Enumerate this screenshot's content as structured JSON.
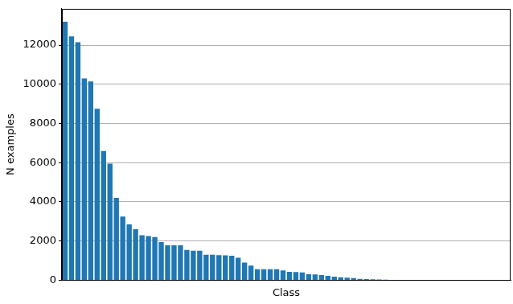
{
  "chart_data": {
    "type": "bar",
    "x_label": "Class",
    "y_label": "N examples",
    "categories": [
      null,
      null,
      null,
      null,
      null,
      null,
      null,
      null,
      null,
      null,
      null,
      null,
      null,
      null,
      null,
      null,
      null,
      null,
      null,
      null,
      null,
      null,
      null,
      null,
      null,
      null,
      null,
      null,
      null,
      null,
      null,
      null,
      null,
      null,
      null,
      null,
      null,
      null,
      null,
      null,
      null,
      null,
      null,
      null,
      null,
      null,
      null,
      null,
      null,
      null,
      null,
      null,
      null,
      null,
      null,
      null,
      null,
      null,
      null,
      null,
      null,
      null,
      null,
      null,
      null,
      null,
      null,
      null,
      null,
      null
    ],
    "values": [
      13200,
      12450,
      12150,
      10300,
      10150,
      8750,
      6600,
      5950,
      4200,
      3250,
      2850,
      2600,
      2300,
      2250,
      2200,
      1950,
      1780,
      1780,
      1780,
      1550,
      1500,
      1500,
      1300,
      1300,
      1280,
      1270,
      1250,
      1150,
      900,
      750,
      560,
      560,
      560,
      560,
      500,
      430,
      420,
      400,
      300,
      290,
      260,
      220,
      180,
      150,
      130,
      110,
      70,
      60,
      50,
      40,
      30,
      20,
      10,
      10,
      5,
      5,
      3,
      0,
      0,
      0,
      0,
      0,
      0,
      0,
      0,
      0,
      0,
      0,
      0,
      0
    ],
    "color": "#1f77b4",
    "ylim": [
      0,
      13860
    ],
    "yticks": [
      0,
      2000,
      4000,
      6000,
      8000,
      10000,
      12000
    ],
    "grid": true,
    "tick_labels": "y"
  }
}
